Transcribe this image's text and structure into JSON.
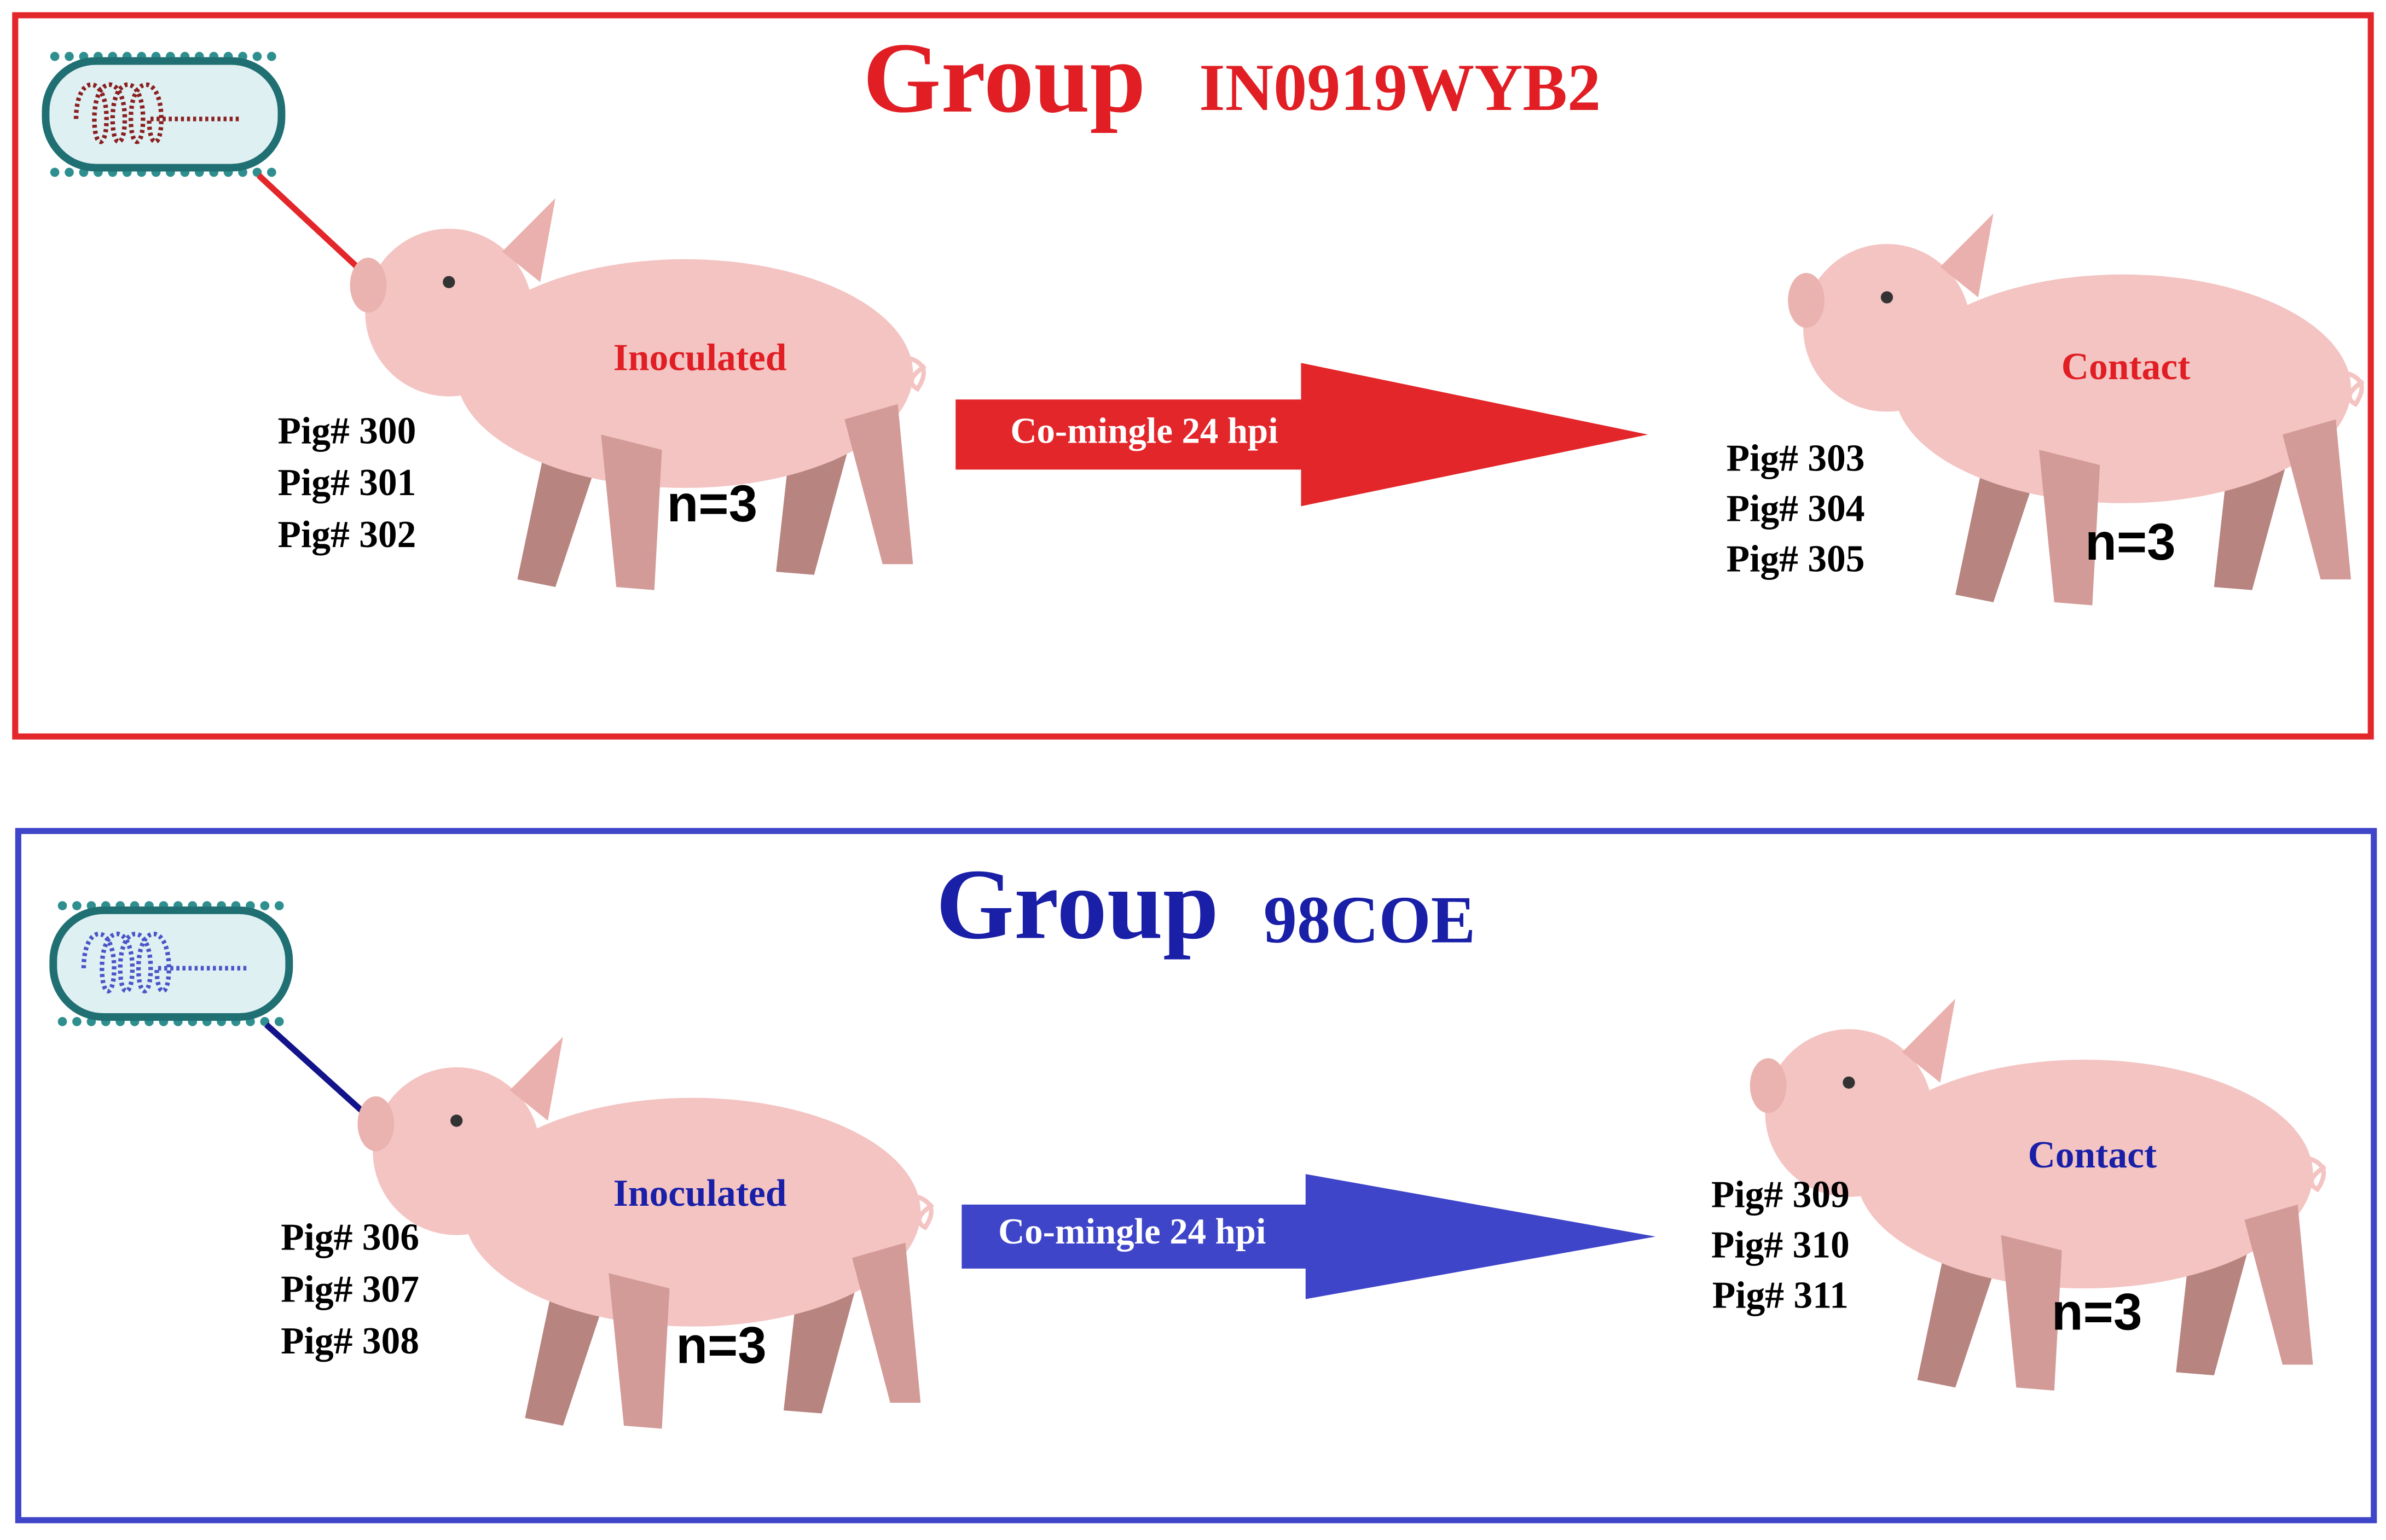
{
  "groups": [
    {
      "title": "Group",
      "strain": "IN0919WYB2",
      "inoculated": {
        "label": "Inoculated",
        "pigs": [
          "Pig# 300",
          "Pig# 301",
          "Pig# 302"
        ],
        "n": "n=3"
      },
      "arrow": "Co-mingle 24 hpi",
      "contact": {
        "label": "Contact",
        "pigs": [
          "Pig# 303",
          "Pig# 304",
          "Pig# 305"
        ],
        "n": "n=3"
      }
    },
    {
      "title": "Group",
      "strain": "98COE",
      "inoculated": {
        "label": "Inoculated",
        "pigs": [
          "Pig# 306",
          "Pig# 307",
          "Pig# 308"
        ],
        "n": "n=3"
      },
      "arrow": "Co-mingle 24 hpi",
      "contact": {
        "label": "Contact",
        "pigs": [
          "Pig# 309",
          "Pig# 310",
          "Pig# 311"
        ],
        "n": "n=3"
      }
    }
  ]
}
